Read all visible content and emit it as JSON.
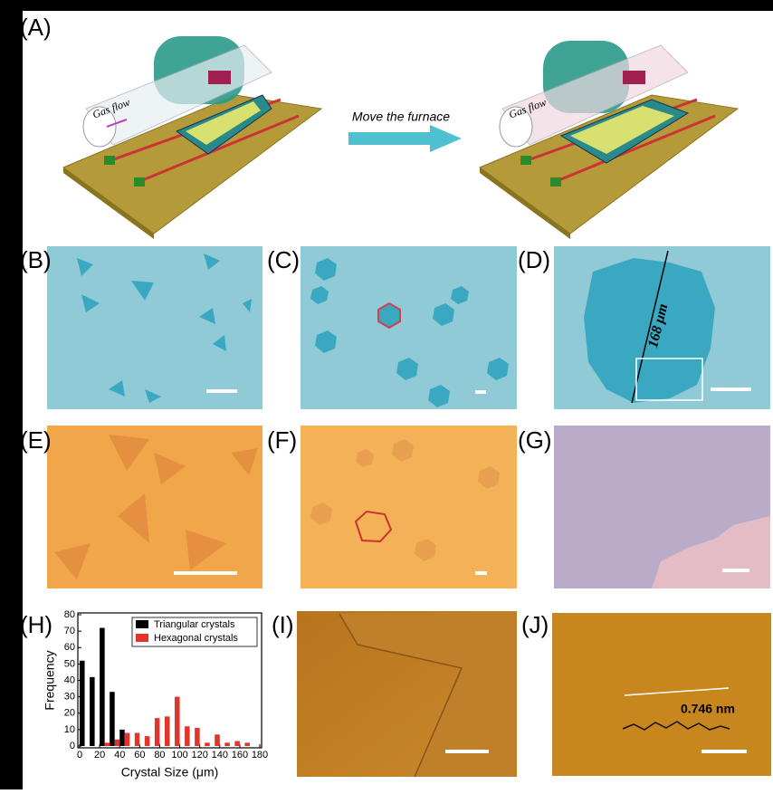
{
  "labels": [
    "(A)",
    "(B)",
    "(C)",
    "(D)",
    "(E)",
    "(F)",
    "(G)",
    "(H)",
    "(I)",
    "(J)"
  ],
  "schematic": {
    "gas_flow": "Gas flow",
    "arrow_label": "Move the furnace"
  },
  "annotations": {
    "diameter": "168 μm",
    "height": "0.746 nm"
  },
  "chart_data": {
    "type": "bar",
    "x": [
      0,
      10,
      20,
      30,
      40,
      50,
      60,
      70,
      80,
      90,
      100,
      110,
      120,
      130,
      140,
      150,
      160
    ],
    "series": [
      {
        "name": "Triangular crystals",
        "color": "#000000",
        "values": [
          52,
          42,
          72,
          33,
          10,
          null,
          null,
          null,
          null,
          null,
          null,
          null,
          null,
          null,
          null,
          null,
          null
        ]
      },
      {
        "name": "Hexagonal crystals",
        "color": "#e0352b",
        "values": [
          null,
          null,
          2,
          4,
          8,
          8,
          6,
          17,
          18,
          30,
          12,
          11,
          2,
          7,
          2,
          3,
          2
        ]
      }
    ],
    "x_label": "Crystal Size (μm)",
    "y_label": "Frequency",
    "xlim": [
      0,
      180
    ],
    "xticks": [
      0,
      20,
      40,
      60,
      80,
      100,
      120,
      140,
      160,
      180
    ],
    "ylim": [
      0,
      80
    ],
    "yticks": [
      0,
      10,
      20,
      30,
      40,
      50,
      60,
      70,
      80
    ],
    "legend": "upper right"
  }
}
